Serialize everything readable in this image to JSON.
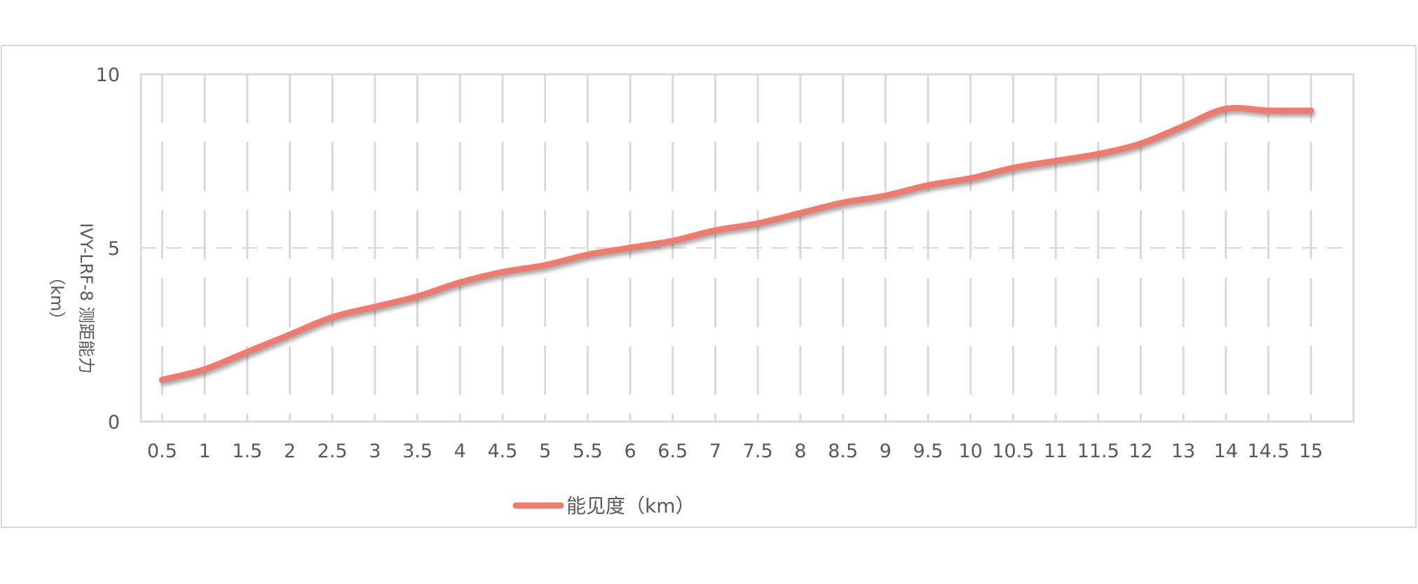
{
  "chart_data": {
    "type": "line",
    "title": "",
    "xlabel": "",
    "ylabel_lines": [
      "IVY-LRF-8 测距能力",
      "（km）"
    ],
    "ylim": [
      0,
      10
    ],
    "yticks": [
      0,
      5,
      10
    ],
    "grid": {
      "vertical": true,
      "horizontal": true
    },
    "legend_position": "bottom",
    "categories": [
      "0.5",
      "1",
      "1.5",
      "2",
      "2.5",
      "3",
      "3.5",
      "4",
      "4.5",
      "5",
      "5.5",
      "6",
      "6.5",
      "7",
      "7.5",
      "8",
      "8.5",
      "9",
      "9.5",
      "10",
      "10.5",
      "11",
      "11.5",
      "12",
      "13",
      "14",
      "14.5",
      "15"
    ],
    "series": [
      {
        "name": "能见度（km）",
        "color": "#ec7c6f",
        "values": [
          1.2,
          1.5,
          2.0,
          2.5,
          3.0,
          3.3,
          3.6,
          4.0,
          4.3,
          4.5,
          4.8,
          5.0,
          5.2,
          5.5,
          5.7,
          6.0,
          6.3,
          6.5,
          6.8,
          7.0,
          7.3,
          7.5,
          7.7,
          8.0,
          8.5,
          9.0,
          8.95,
          8.95
        ]
      }
    ]
  }
}
